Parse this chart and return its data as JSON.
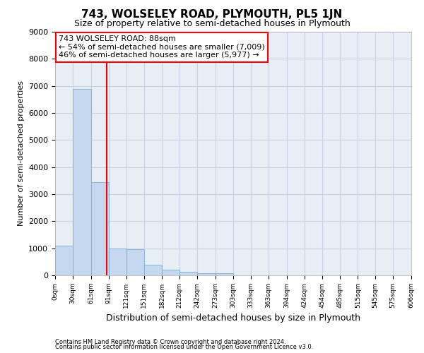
{
  "title": "743, WOLSELEY ROAD, PLYMOUTH, PL5 1JN",
  "subtitle": "Size of property relative to semi-detached houses in Plymouth",
  "xlabel": "Distribution of semi-detached houses by size in Plymouth",
  "ylabel": "Number of semi-detached properties",
  "footnote1": "Contains HM Land Registry data © Crown copyright and database right 2024.",
  "footnote2": "Contains public sector information licensed under the Open Government Licence v3.0.",
  "annotation_line1": "743 WOLSELEY ROAD: 88sqm",
  "annotation_line2": "← 54% of semi-detached houses are smaller (7,009)",
  "annotation_line3": "46% of semi-detached houses are larger (5,977) →",
  "bin_edges": [
    0,
    30,
    61,
    91,
    121,
    151,
    182,
    212,
    242,
    273,
    303,
    333,
    363,
    394,
    424,
    454,
    485,
    515,
    545,
    575,
    606
  ],
  "bin_labels": [
    "0sqm",
    "30sqm",
    "61sqm",
    "91sqm",
    "121sqm",
    "151sqm",
    "182sqm",
    "212sqm",
    "242sqm",
    "273sqm",
    "303sqm",
    "333sqm",
    "363sqm",
    "394sqm",
    "424sqm",
    "454sqm",
    "485sqm",
    "515sqm",
    "545sqm",
    "575sqm",
    "606sqm"
  ],
  "bar_heights": [
    1100,
    6900,
    3450,
    1000,
    970,
    380,
    220,
    130,
    80,
    80,
    0,
    0,
    0,
    0,
    0,
    0,
    0,
    0,
    0,
    0
  ],
  "bar_color": "#c5d8ef",
  "bar_edge_color": "#7aadd4",
  "grid_color": "#c8d4e3",
  "bg_color": "#e8eef6",
  "vline_color": "red",
  "vline_x": 88,
  "ylim": [
    0,
    9000
  ],
  "yticks": [
    0,
    1000,
    2000,
    3000,
    4000,
    5000,
    6000,
    7000,
    8000,
    9000
  ],
  "annotation_box_color": "white",
  "annotation_box_edge": "red",
  "title_fontsize": 11,
  "subtitle_fontsize": 9,
  "ylabel_fontsize": 8,
  "xlabel_fontsize": 9,
  "ytick_fontsize": 8,
  "xtick_fontsize": 6.5,
  "footnote_fontsize": 6
}
